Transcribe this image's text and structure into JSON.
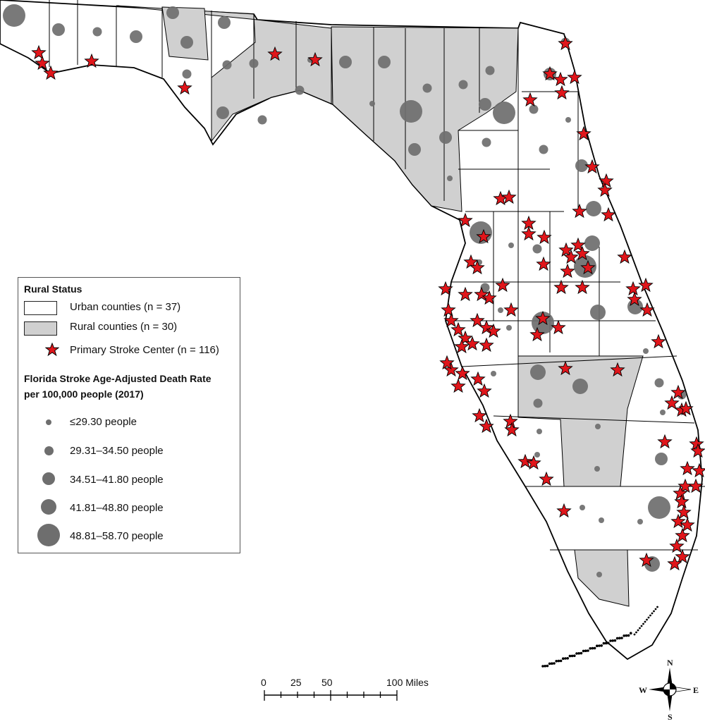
{
  "legend": {
    "rural_status_title": "Rural Status",
    "urban": "Urban counties (n = 37)",
    "rural": "Rural counties (n = 30)",
    "stroke_center": "Primary Stroke Center (n = 116)",
    "rate_title_line1": "Florida Stroke Age-Adjusted Death Rate",
    "rate_title_line2": "per 100,000 people (2017)",
    "classes": [
      "≤29.30 people",
      "29.31–34.50 people",
      "34.51–41.80 people",
      "41.81–48.80 people",
      "48.81–58.70 people"
    ]
  },
  "scale_bar": {
    "ticks": [
      "0",
      "25",
      "50",
      "100 Miles"
    ]
  },
  "compass": {
    "n": "N",
    "s": "S",
    "e": "E",
    "w": "W"
  },
  "colors": {
    "urban": "#ffffff",
    "rural": "#d0d0d0",
    "circle": "#6e6e6e",
    "star": "#e0161b",
    "border": "#000000"
  }
}
